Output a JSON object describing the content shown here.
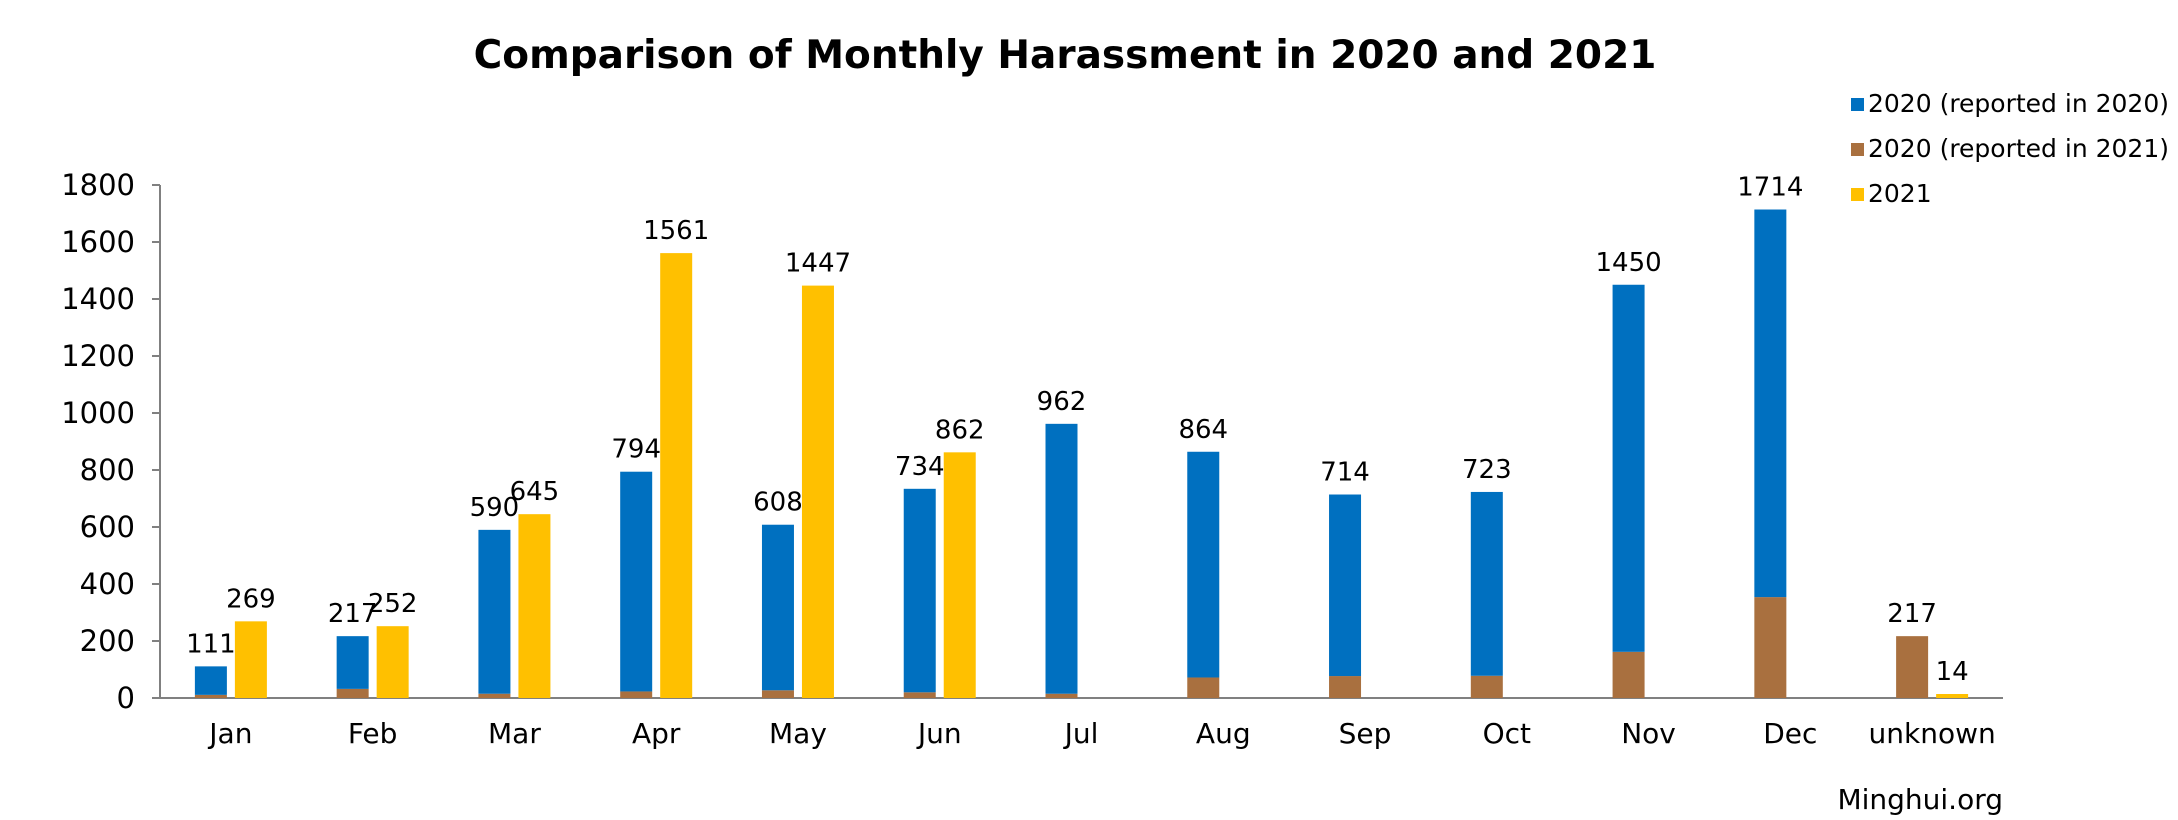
{
  "chart_data": {
    "type": "bar",
    "title": "Comparison of Monthly Harassment in 2020 and 2021",
    "categories": [
      "Jan",
      "Feb",
      "Mar",
      "Apr",
      "May",
      "Jun",
      "Jul",
      "Aug",
      "Sep",
      "Oct",
      "Nov",
      "Dec",
      "unknown"
    ],
    "yticks": [
      "0",
      "200",
      "400",
      "600",
      "800",
      "1000",
      "1200",
      "1400",
      "1600",
      "1800"
    ],
    "ylim": [
      0,
      1800
    ],
    "stacked_2020_totals": [
      111,
      217,
      590,
      794,
      608,
      734,
      962,
      864,
      714,
      723,
      1450,
      1714,
      217
    ],
    "series": [
      {
        "name": "2020 (reported in 2020)",
        "color": "#0070c0",
        "stack": "2020",
        "values": [
          100,
          185,
          575,
          771,
          581,
          714,
          947,
          792,
          637,
          645,
          1288,
          1360,
          0
        ]
      },
      {
        "name": "2020 (reported in 2021)",
        "color": "#a9703f",
        "stack": "2020",
        "values": [
          11,
          32,
          15,
          23,
          27,
          20,
          15,
          72,
          77,
          78,
          162,
          354,
          217
        ]
      },
      {
        "name": "2021",
        "color": "#ffc000",
        "stack": "2021",
        "values": [
          269,
          252,
          645,
          1561,
          1447,
          862,
          null,
          null,
          null,
          null,
          null,
          null,
          14
        ]
      }
    ],
    "legend_position": "top-right",
    "grid": false,
    "credit": "Minghui.org"
  }
}
